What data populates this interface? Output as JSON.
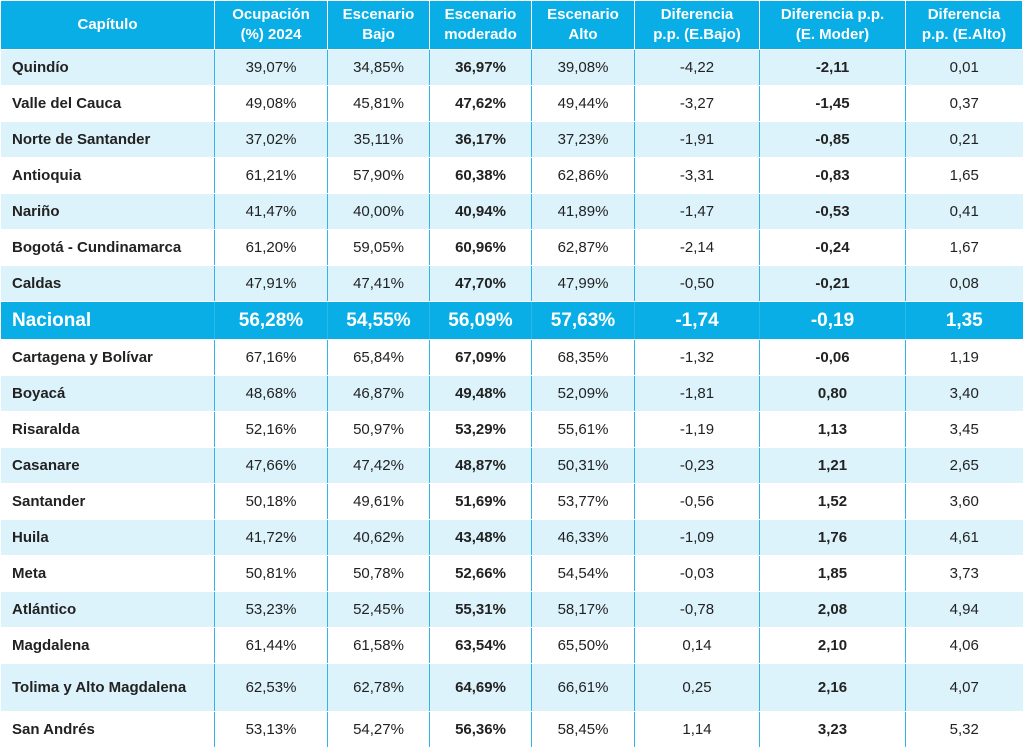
{
  "headers": [
    {
      "l1": "Capítulo",
      "l2": ""
    },
    {
      "l1": "Ocupación",
      "l2": "(%) 2024"
    },
    {
      "l1": "Escenario",
      "l2": "Bajo"
    },
    {
      "l1": "Escenario",
      "l2": "moderado"
    },
    {
      "l1": "Escenario",
      "l2": "Alto"
    },
    {
      "l1": "Diferencia",
      "l2": "p.p. (E.Bajo)"
    },
    {
      "l1": "Diferencia p.p.",
      "l2": "(E. Moder)"
    },
    {
      "l1": "Diferencia",
      "l2": "p.p. (E.Alto)"
    }
  ],
  "rows": [
    [
      "Quindío",
      "39,07%",
      "34,85%",
      "36,97%",
      "39,08%",
      "-4,22",
      "-2,11",
      "0,01"
    ],
    [
      "Valle del Cauca",
      "49,08%",
      "45,81%",
      "47,62%",
      "49,44%",
      "-3,27",
      "-1,45",
      "0,37"
    ],
    [
      "Norte de Santander",
      "37,02%",
      "35,11%",
      "36,17%",
      "37,23%",
      "-1,91",
      "-0,85",
      "0,21"
    ],
    [
      "Antioquia",
      "61,21%",
      "57,90%",
      "60,38%",
      "62,86%",
      "-3,31",
      "-0,83",
      "1,65"
    ],
    [
      "Nariño",
      "41,47%",
      "40,00%",
      "40,94%",
      "41,89%",
      "-1,47",
      "-0,53",
      "0,41"
    ],
    [
      "Bogotá - Cundinamarca",
      "61,20%",
      "59,05%",
      "60,96%",
      "62,87%",
      "-2,14",
      "-0,24",
      "1,67"
    ],
    [
      "Caldas",
      "47,91%",
      "47,41%",
      "47,70%",
      "47,99%",
      "-0,50",
      "-0,21",
      "0,08"
    ],
    [
      "Nacional",
      "56,28%",
      "54,55%",
      "56,09%",
      "57,63%",
      "-1,74",
      "-0,19",
      "1,35"
    ],
    [
      "Cartagena y Bolívar",
      "67,16%",
      "65,84%",
      "67,09%",
      "68,35%",
      "-1,32",
      "-0,06",
      "1,19"
    ],
    [
      "Boyacá",
      "48,68%",
      "46,87%",
      "49,48%",
      "52,09%",
      "-1,81",
      "0,80",
      "3,40"
    ],
    [
      "Risaralda",
      "52,16%",
      "50,97%",
      "53,29%",
      "55,61%",
      "-1,19",
      "1,13",
      "3,45"
    ],
    [
      "Casanare",
      "47,66%",
      "47,42%",
      "48,87%",
      "50,31%",
      "-0,23",
      "1,21",
      "2,65"
    ],
    [
      "Santander",
      "50,18%",
      "49,61%",
      "51,69%",
      "53,77%",
      "-0,56",
      "1,52",
      "3,60"
    ],
    [
      "Huila",
      "41,72%",
      "40,62%",
      "43,48%",
      "46,33%",
      "-1,09",
      "1,76",
      "4,61"
    ],
    [
      "Meta",
      "50,81%",
      "50,78%",
      "52,66%",
      "54,54%",
      "-0,03",
      "1,85",
      "3,73"
    ],
    [
      "Atlántico",
      "53,23%",
      "52,45%",
      "55,31%",
      "58,17%",
      "-0,78",
      "2,08",
      "4,94"
    ],
    [
      "Magdalena",
      "61,44%",
      "61,58%",
      "63,54%",
      "65,50%",
      "0,14",
      "2,10",
      "4,06"
    ],
    [
      "Tolima y Alto Magdalena",
      "62,53%",
      "62,78%",
      "64,69%",
      "66,61%",
      "0,25",
      "2,16",
      "4,07"
    ],
    [
      "San Andrés",
      "53,13%",
      "54,27%",
      "56,36%",
      "58,45%",
      "1,14",
      "3,23",
      "5,32"
    ]
  ],
  "colors": {
    "header_bg": "#0aaee6",
    "band_light": "#ddf3fb",
    "band_white": "#ffffff",
    "divider": "#2fb5e6"
  }
}
